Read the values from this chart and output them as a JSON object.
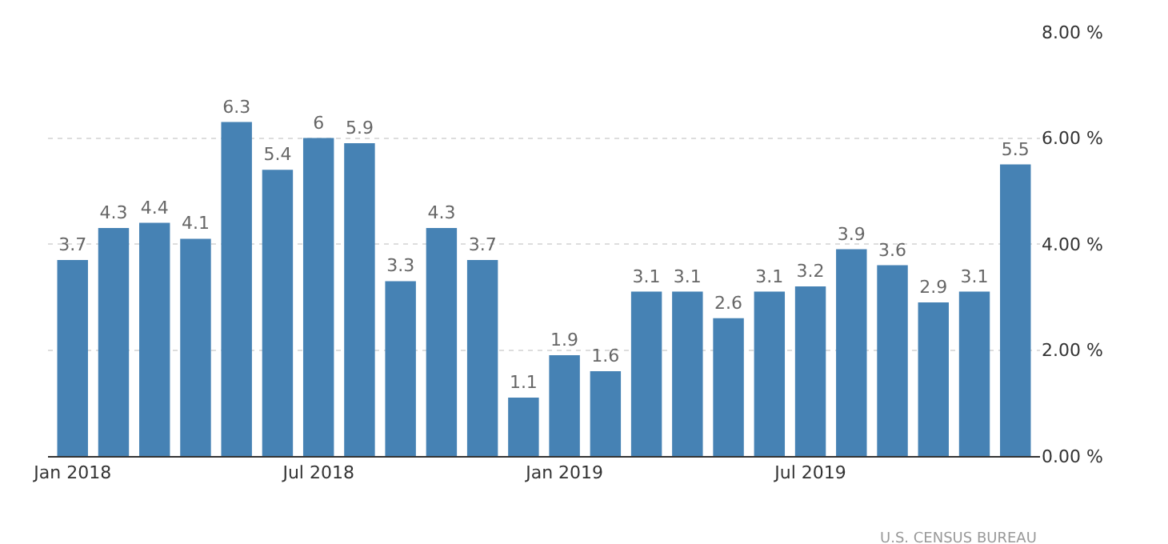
{
  "chart_data": {
    "type": "bar",
    "categories": [
      "Jan 2018",
      null,
      null,
      null,
      null,
      null,
      "Jul 2018",
      null,
      null,
      null,
      null,
      null,
      "Jan 2019",
      null,
      null,
      null,
      null,
      null,
      "Jul 2019",
      null,
      null,
      null,
      null,
      null
    ],
    "values": [
      3.7,
      4.3,
      4.4,
      4.1,
      6.3,
      5.4,
      6,
      5.9,
      3.3,
      4.3,
      3.7,
      1.1,
      1.9,
      1.6,
      3.1,
      3.1,
      2.6,
      3.1,
      3.2,
      3.9,
      3.6,
      2.9,
      3.1,
      5.5
    ],
    "color": "#4682b4",
    "data_labels": true,
    "ylim": [
      0,
      8
    ],
    "yticks": [
      {
        "value": 0,
        "label": "0.00 %"
      },
      {
        "value": 2,
        "label": "2.00 %"
      },
      {
        "value": 4,
        "label": "4.00 %"
      },
      {
        "value": 6,
        "label": "6.00 %"
      },
      {
        "value": 8,
        "label": "8.00 %"
      }
    ],
    "grid": "y",
    "legend": false,
    "annotations": [
      "U.S. CENSUS BUREAU"
    ]
  }
}
